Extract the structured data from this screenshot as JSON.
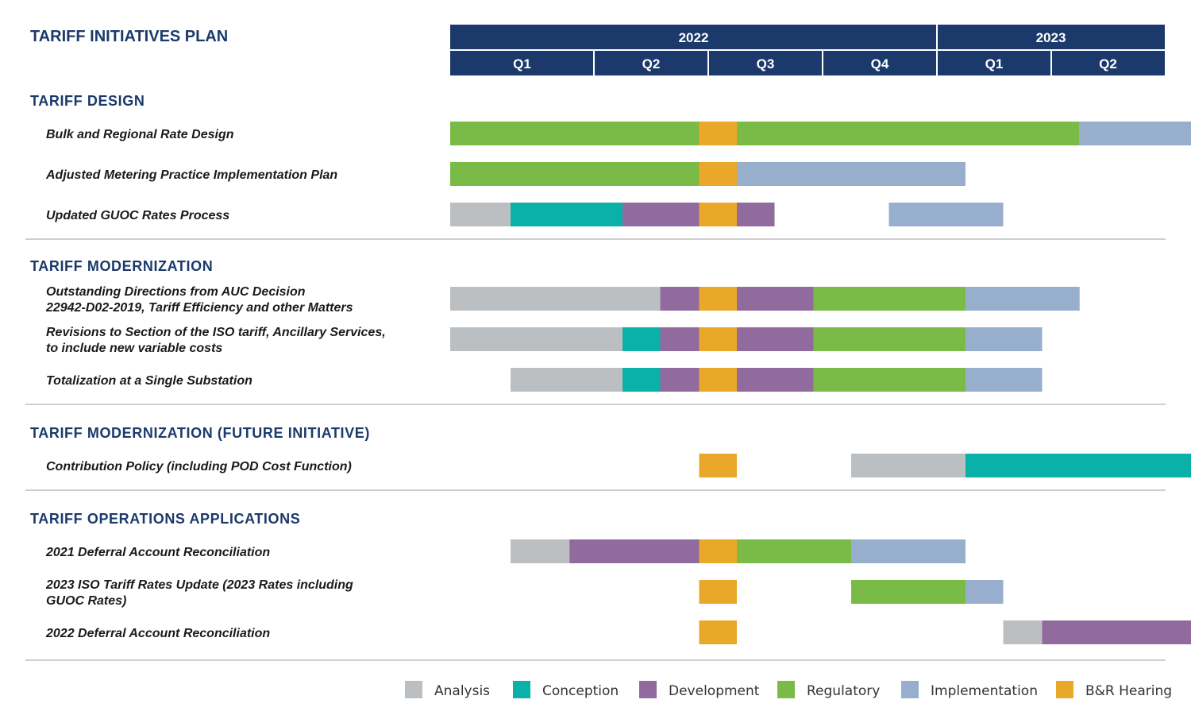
{
  "chart_data": {
    "type": "gantt",
    "title": "TARIFF INITIATIVES PLAN",
    "years": [
      {
        "label": "2022",
        "quarters": 4
      },
      {
        "label": "2023",
        "quarters": 2
      }
    ],
    "quarters": [
      "Q1",
      "Q2",
      "Q3",
      "Q4",
      "Q1",
      "Q2"
    ],
    "phases": [
      {
        "key": "analysis",
        "name": "Analysis",
        "color": "#bcbfc2"
      },
      {
        "key": "conception",
        "name": "Conception",
        "color": "#0ab1a8"
      },
      {
        "key": "development",
        "name": "Development",
        "color": "#926b9e"
      },
      {
        "key": "regulatory",
        "name": "Regulatory",
        "color": "#79bb46"
      },
      {
        "key": "implementation",
        "name": "Implementation",
        "color": "#97afcd"
      },
      {
        "key": "hearing",
        "name": "B&R Hearing",
        "color": "#eaa82a"
      }
    ],
    "sections": [
      {
        "name": "TARIFF DESIGN",
        "tasks": [
          {
            "label": [
              "Bulk and Regional Rate Design"
            ],
            "segments": [
              [
                "regulatory",
                0.0,
                1.92
              ],
              [
                "hearing",
                1.92,
                2.25
              ],
              [
                "regulatory",
                2.25,
                5.25
              ],
              [
                "implementation",
                5.25,
                6.25
              ]
            ]
          },
          {
            "label": [
              "Adjusted Metering Practice Implementation Plan"
            ],
            "segments": [
              [
                "regulatory",
                0.0,
                1.92
              ],
              [
                "hearing",
                1.92,
                2.25
              ],
              [
                "implementation",
                2.25,
                4.25
              ]
            ]
          },
          {
            "label": [
              "Updated GUOC Rates Process"
            ],
            "segments": [
              [
                "analysis",
                0.0,
                0.42
              ],
              [
                "conception",
                0.42,
                1.25
              ],
              [
                "development",
                1.25,
                1.92
              ],
              [
                "hearing",
                1.92,
                2.25
              ],
              [
                "development",
                2.25,
                2.58
              ],
              [
                "implementation",
                3.58,
                4.58
              ]
            ]
          }
        ]
      },
      {
        "name": "TARIFF MODERNIZATION",
        "tasks": [
          {
            "label": [
              "Outstanding Directions from AUC Decision",
              "22942-D02-2019, Tariff Efficiency and other Matters"
            ],
            "segments": [
              [
                "analysis",
                0.0,
                1.58
              ],
              [
                "development",
                1.58,
                1.92
              ],
              [
                "hearing",
                1.92,
                2.25
              ],
              [
                "development",
                2.25,
                2.92
              ],
              [
                "regulatory",
                2.92,
                4.25
              ],
              [
                "implementation",
                4.25,
                5.25
              ]
            ]
          },
          {
            "label": [
              "Revisions to Section of the ISO tariff, Ancillary Services,",
              "to include new variable costs"
            ],
            "segments": [
              [
                "analysis",
                0.0,
                1.25
              ],
              [
                "conception",
                1.25,
                1.58
              ],
              [
                "development",
                1.58,
                1.92
              ],
              [
                "hearing",
                1.92,
                2.25
              ],
              [
                "development",
                2.25,
                2.92
              ],
              [
                "regulatory",
                2.92,
                4.25
              ],
              [
                "implementation",
                4.25,
                4.92
              ]
            ]
          },
          {
            "label": [
              "Totalization at a Single Substation"
            ],
            "segments": [
              [
                "analysis",
                0.42,
                1.25
              ],
              [
                "conception",
                1.25,
                1.58
              ],
              [
                "development",
                1.58,
                1.92
              ],
              [
                "hearing",
                1.92,
                2.25
              ],
              [
                "development",
                2.25,
                2.92
              ],
              [
                "regulatory",
                2.92,
                4.25
              ],
              [
                "implementation",
                4.25,
                4.92
              ]
            ]
          }
        ]
      },
      {
        "name": "TARIFF MODERNIZATION (FUTURE INITIATIVE)",
        "tasks": [
          {
            "label": [
              "Contribution Policy (including POD Cost Function)"
            ],
            "segments": [
              [
                "hearing",
                1.92,
                2.25
              ],
              [
                "analysis",
                3.25,
                4.25
              ],
              [
                "conception",
                4.25,
                6.25
              ]
            ]
          }
        ]
      },
      {
        "name": "TARIFF OPERATIONS APPLICATIONS",
        "tasks": [
          {
            "label": [
              "2021 Deferral Account Reconciliation"
            ],
            "segments": [
              [
                "analysis",
                0.42,
                0.83
              ],
              [
                "development",
                0.83,
                1.92
              ],
              [
                "hearing",
                1.92,
                2.25
              ],
              [
                "regulatory",
                2.25,
                3.25
              ],
              [
                "implementation",
                3.25,
                4.25
              ]
            ]
          },
          {
            "label": [
              "2023 ISO Tariff Rates Update (2023 Rates including",
              "GUOC Rates)"
            ],
            "segments": [
              [
                "hearing",
                1.92,
                2.25
              ],
              [
                "regulatory",
                3.25,
                4.25
              ],
              [
                "implementation",
                4.25,
                4.58
              ]
            ]
          },
          {
            "label": [
              "2022 Deferral Account Reconciliation"
            ],
            "segments": [
              [
                "hearing",
                1.92,
                2.25
              ],
              [
                "analysis",
                4.58,
                4.92
              ],
              [
                "development",
                4.92,
                6.25
              ]
            ]
          }
        ]
      }
    ]
  },
  "style": {
    "header_color": "#1b3a6b",
    "divider_color": "#b0b0b0"
  }
}
